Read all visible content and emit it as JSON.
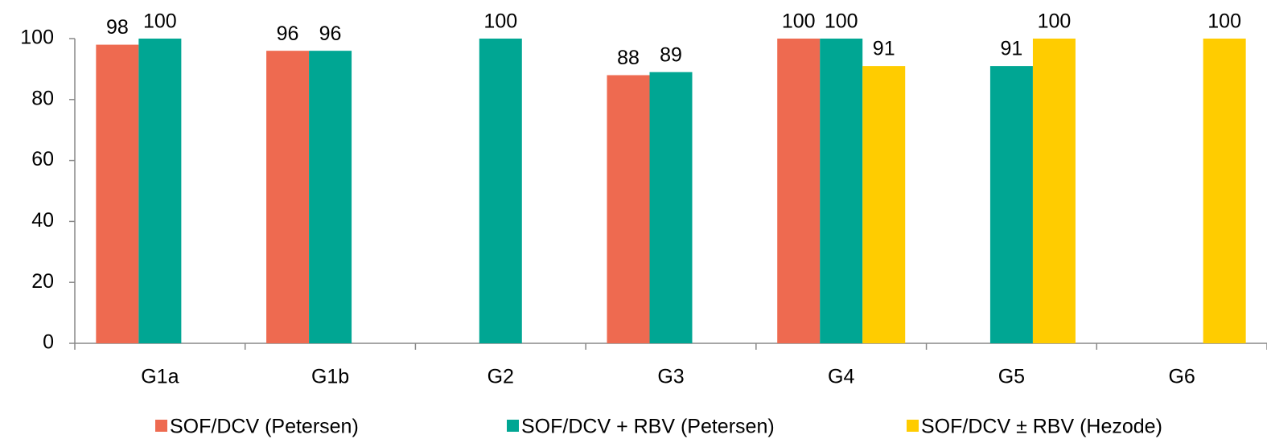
{
  "chart_data": {
    "type": "bar",
    "categories": [
      "G1a",
      "G1b",
      "G2",
      "G3",
      "G4",
      "G5",
      "G6"
    ],
    "series": [
      {
        "name": "SOF/DCV (Petersen)",
        "color": "#ee6a50",
        "values": [
          98,
          96,
          null,
          88,
          100,
          null,
          null
        ]
      },
      {
        "name": "SOF/DCV + RBV (Petersen)",
        "color": "#00a693",
        "values": [
          100,
          96,
          100,
          89,
          100,
          91,
          null
        ]
      },
      {
        "name": "SOF/DCV ± RBV (Hezode)",
        "color": "#ffcc00",
        "values": [
          null,
          null,
          null,
          null,
          91,
          100,
          100
        ]
      }
    ],
    "ylim": [
      0,
      100
    ],
    "yticks": [
      0,
      20,
      40,
      60,
      80,
      100
    ],
    "grid": false,
    "legend": "bottom"
  }
}
